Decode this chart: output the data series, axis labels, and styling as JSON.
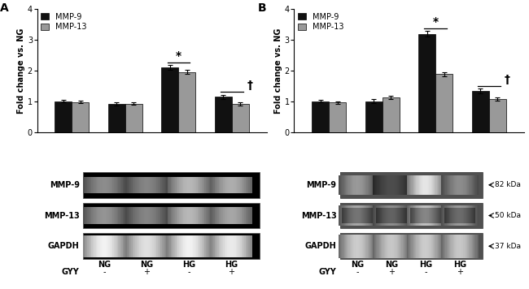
{
  "panel_A": {
    "title": "A",
    "mmp9_values": [
      1.0,
      0.93,
      2.1,
      1.15
    ],
    "mmp13_values": [
      0.98,
      0.93,
      1.95,
      0.93
    ],
    "mmp9_err": [
      0.04,
      0.05,
      0.07,
      0.06
    ],
    "mmp13_err": [
      0.04,
      0.04,
      0.06,
      0.05
    ],
    "ylim": [
      0,
      4
    ],
    "yticks": [
      0,
      1,
      2,
      3,
      4
    ],
    "ylabel": "Fold change vs. NG",
    "gel_labels": [
      "MMP-9",
      "MMP-13",
      "GAPDH"
    ],
    "x_labels": [
      "NG",
      "NG",
      "HG",
      "HG"
    ],
    "gyy_labels": [
      "-",
      "+",
      "-",
      "+"
    ],
    "show_kda": false,
    "kda_labels": [],
    "gel_A_mmp9_intensities": [
      0.55,
      0.52,
      0.72,
      0.68
    ],
    "gel_A_mmp13_intensities": [
      0.58,
      0.52,
      0.72,
      0.65
    ],
    "gel_A_gapdh_intensities": [
      0.95,
      0.88,
      0.95,
      0.92
    ],
    "gel_A_mmp9_style": "thin_band",
    "gel_A_mmp13_style": "thin_band",
    "gel_A_gapdh_style": "wide_bright"
  },
  "panel_B": {
    "title": "B",
    "mmp9_values": [
      1.0,
      1.01,
      3.18,
      1.33
    ],
    "mmp13_values": [
      0.97,
      1.12,
      1.88,
      1.08
    ],
    "mmp9_err": [
      0.04,
      0.06,
      0.09,
      0.08
    ],
    "mmp13_err": [
      0.04,
      0.05,
      0.07,
      0.06
    ],
    "ylim": [
      0,
      4
    ],
    "yticks": [
      0,
      1,
      2,
      3,
      4
    ],
    "ylabel": "Fold change vs. NG",
    "gel_labels": [
      "MMP-9",
      "MMP-13",
      "GAPDH"
    ],
    "x_labels": [
      "NG",
      "NG",
      "HG",
      "HG"
    ],
    "gyy_labels": [
      "-",
      "+",
      "-",
      "+"
    ],
    "show_kda": true,
    "kda_labels": [
      "82 kDa",
      "50 kDa",
      "37 kDa"
    ],
    "gel_B_mmp9_intensities": [
      0.6,
      0.3,
      0.9,
      0.55
    ],
    "gel_B_mmp13_intensities": [
      0.65,
      0.55,
      0.75,
      0.6
    ],
    "gel_B_gapdh_intensities": [
      0.8,
      0.78,
      0.8,
      0.78
    ]
  },
  "bar_color_mmp9": "#111111",
  "bar_color_mmp13": "#999999",
  "bar_width": 0.32,
  "background_color": "#ffffff",
  "font_size": 7,
  "title_font_size": 10,
  "legend_font_size": 7
}
